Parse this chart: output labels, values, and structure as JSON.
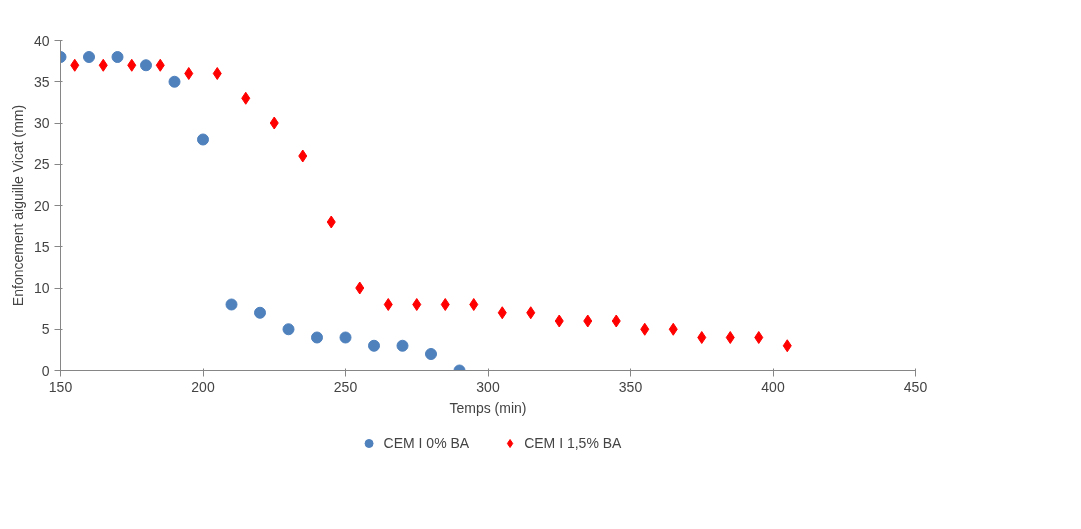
{
  "chart_data": {
    "type": "scatter",
    "xlabel": "Temps (min)",
    "ylabel": "Enfoncement aiguille Vicat (mm)",
    "xlim": [
      150,
      450
    ],
    "xticks": [
      150,
      200,
      250,
      300,
      350,
      400,
      450
    ],
    "ylim": [
      0,
      40
    ],
    "yticks": [
      0,
      5,
      10,
      15,
      20,
      25,
      30,
      35,
      40
    ],
    "grid": false,
    "legend": "bottom",
    "series": [
      {
        "name": "CEM I 0% BA",
        "color": "#4f81bd",
        "marker": "circle",
        "x": [
          150,
          160,
          170,
          180,
          190,
          200,
          210,
          220,
          230,
          240,
          250,
          260,
          270,
          280,
          290
        ],
        "values": [
          38,
          38,
          38,
          37,
          35,
          28,
          8,
          7,
          5,
          4,
          4,
          3,
          3,
          2,
          0
        ]
      },
      {
        "name": "CEM I 1,5% BA",
        "color": "#ff0000",
        "marker": "diamond",
        "x": [
          155,
          165,
          175,
          185,
          195,
          205,
          215,
          225,
          235,
          245,
          255,
          265,
          275,
          285,
          295,
          305,
          315,
          325,
          335,
          345,
          355,
          365,
          375,
          385,
          395,
          405
        ],
        "values": [
          37,
          37,
          37,
          37,
          36,
          36,
          33,
          30,
          26,
          18,
          10,
          8,
          8,
          8,
          8,
          7,
          7,
          6,
          6,
          6,
          5,
          5,
          4,
          4,
          4,
          3
        ]
      }
    ]
  }
}
